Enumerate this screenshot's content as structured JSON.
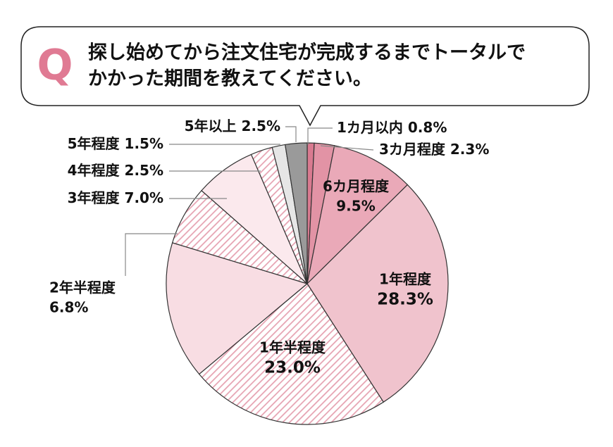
{
  "chart_data": {
    "type": "pie",
    "marker": "Q",
    "title": [
      "探し始めてから注文住宅が完成するまでトータルで",
      "かかった期間を教えてください。"
    ],
    "categories": [
      "1カ月以内",
      "3カ月程度",
      "6カ月程度",
      "1年程度",
      "1年半程度",
      null,
      "2年半程度",
      "3年程度",
      "4年程度",
      "5年程度",
      "5年以上"
    ],
    "values": [
      0.8,
      2.3,
      9.5,
      28.3,
      23.0,
      15.8,
      6.8,
      7.0,
      2.5,
      1.5,
      2.5
    ],
    "value_labels": [
      "0.8%",
      "2.3%",
      "9.5%",
      "28.3%",
      "23.0%",
      null,
      "6.8%",
      "7.0%",
      "2.5%",
      "1.5%",
      "2.5%"
    ],
    "colors": [
      "#d97a90",
      "#e293a5",
      "#eaa9b8",
      "#f0c3cd",
      "#e6a3b2",
      "#f8dde3",
      "#e09aab",
      "#fbe9ed",
      "#eeb3c0",
      "#e6e6e6",
      "#9a9a9a"
    ],
    "hatched": [
      false,
      false,
      false,
      false,
      true,
      false,
      true,
      false,
      true,
      false,
      false
    ]
  }
}
